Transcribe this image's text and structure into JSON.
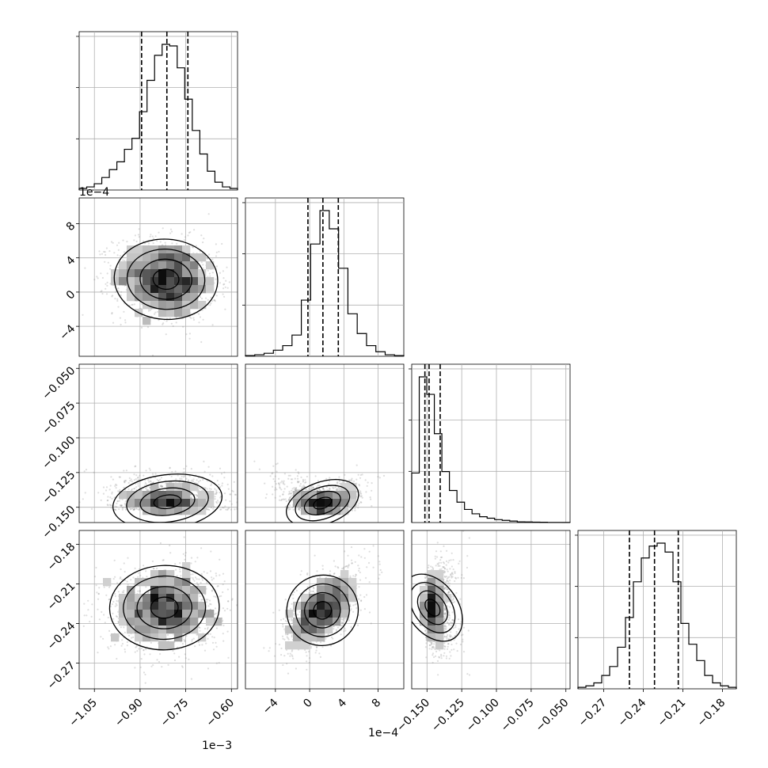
{
  "chart_data": {
    "type": "corner",
    "grid": true,
    "style": {
      "hist_color": "#000000",
      "quantile_color": "#000000",
      "point_color": "#8a8a8a",
      "contour_color": "#000000"
    },
    "parameters": [
      {
        "range": [
          -1.1,
          -0.58
        ],
        "ticks": [
          -1.05,
          -0.9,
          -0.75,
          -0.6
        ],
        "tick_labels": [
          "−1.05",
          "−0.90",
          "−0.75",
          "−0.60"
        ],
        "offset_label": "1e−3",
        "quantiles": [
          -0.895,
          -0.812,
          -0.743
        ]
      },
      {
        "range": [
          -7.5,
          11.0
        ],
        "ticks": [
          -4,
          0,
          4,
          8
        ],
        "tick_labels": [
          "−4",
          "0",
          "4",
          "8"
        ],
        "offset_label": "1e−4",
        "quantiles": [
          -0.2,
          1.55,
          3.35
        ]
      },
      {
        "range": [
          -0.161,
          -0.047
        ],
        "ticks": [
          -0.15,
          -0.125,
          -0.1,
          -0.075,
          -0.05
        ],
        "tick_labels": [
          "−0.150",
          "−0.125",
          "−0.100",
          "−0.075",
          "−0.050"
        ],
        "offset_label": "",
        "quantiles": [
          -0.1515,
          -0.1485,
          -0.1405
        ]
      },
      {
        "range": [
          -0.2895,
          -0.1695
        ],
        "ticks": [
          -0.27,
          -0.24,
          -0.21,
          -0.18
        ],
        "tick_labels": [
          "−0.27",
          "−0.24",
          "−0.21",
          "−0.18"
        ],
        "offset_label": "",
        "quantiles": [
          -0.2505,
          -0.2315,
          -0.2135
        ]
      }
    ],
    "histograms": [
      [
        1,
        2,
        4,
        8,
        13,
        18,
        26,
        33,
        50,
        70,
        86,
        93,
        92,
        78,
        58,
        38,
        23,
        12,
        5,
        2,
        1
      ],
      [
        0.5,
        1,
        2,
        4,
        7,
        14,
        37,
        74,
        96,
        84,
        58,
        28,
        15,
        7,
        3,
        1,
        0.5
      ],
      [
        34,
        100,
        88,
        61,
        35,
        22,
        14,
        9,
        6,
        4,
        3,
        2,
        1.5,
        1,
        0.5,
        0.4,
        0.3,
        0.2,
        0.1,
        0.1,
        0.05
      ],
      [
        1,
        2,
        4,
        9,
        15,
        28,
        48,
        72,
        88,
        96,
        98,
        92,
        72,
        44,
        30,
        19,
        9,
        4,
        2,
        1
      ]
    ],
    "correlations": [
      {
        "row": 1,
        "col": 0,
        "mean": [
          -0.815,
          1.5
        ],
        "sd": [
          0.085,
          2.35
        ],
        "rho": -0.1
      },
      {
        "row": 2,
        "col": 0,
        "mean": [
          -0.81,
          -0.146
        ],
        "sd": [
          0.09,
          0.01
        ],
        "rho": 0.3
      },
      {
        "row": 2,
        "col": 1,
        "mean": [
          1.5,
          -0.147
        ],
        "sd": [
          2.2,
          0.009
        ],
        "rho": 0.7
      },
      {
        "row": 3,
        "col": 0,
        "mean": [
          -0.82,
          -0.228
        ],
        "sd": [
          0.09,
          0.016
        ],
        "rho": 0.05
      },
      {
        "row": 3,
        "col": 1,
        "mean": [
          1.5,
          -0.23
        ],
        "sd": [
          2.1,
          0.015
        ],
        "rho": 0.6
      },
      {
        "row": 3,
        "col": 2,
        "mean": [
          -0.146,
          -0.228
        ],
        "sd": [
          0.009,
          0.016
        ],
        "rho": 0.6
      }
    ]
  }
}
